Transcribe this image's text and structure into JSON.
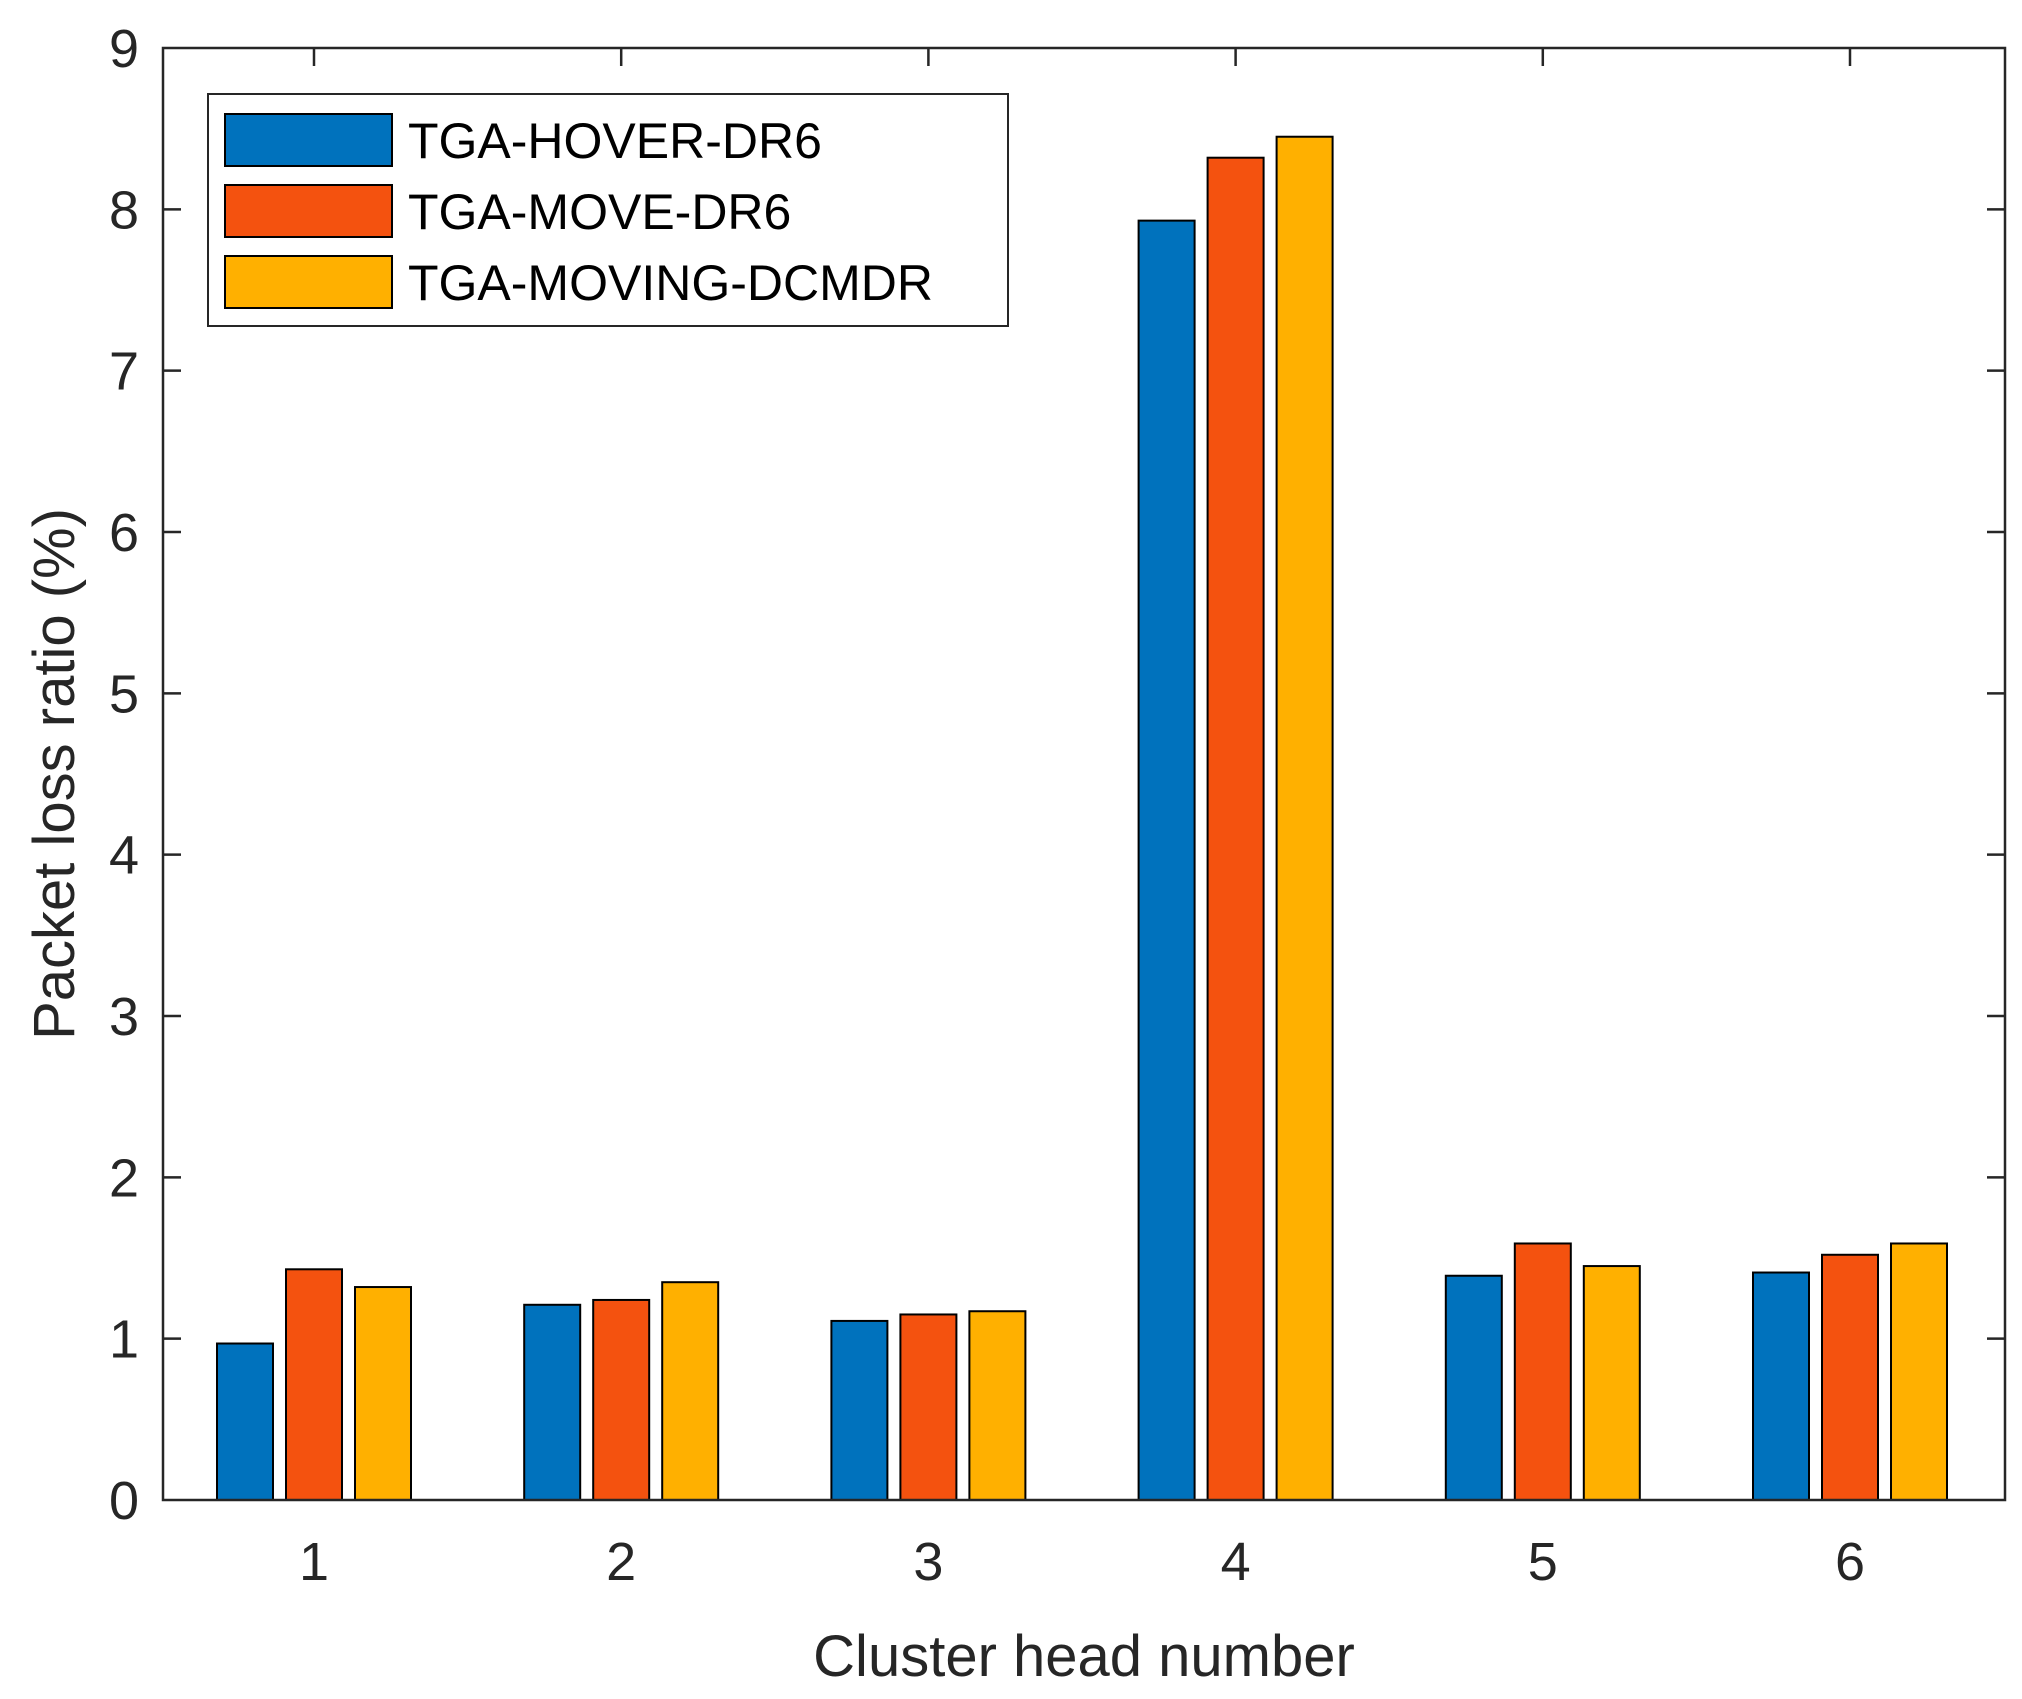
{
  "chart_data": {
    "type": "bar",
    "title": "",
    "xlabel": "Cluster head number",
    "ylabel": "Packet loss ratio (%)",
    "categories": [
      "1",
      "2",
      "3",
      "4",
      "5",
      "6"
    ],
    "series": [
      {
        "name": "TGA-HOVER-DR6",
        "color": "#0072BD",
        "values": [
          0.97,
          1.21,
          1.11,
          7.93,
          1.39,
          1.41
        ]
      },
      {
        "name": "TGA-MOVE-DR6",
        "color": "#F4520F",
        "values": [
          1.43,
          1.24,
          1.15,
          8.32,
          1.59,
          1.52
        ]
      },
      {
        "name": "TGA-MOVING-DCMDR",
        "color": "#FFB000",
        "values": [
          1.32,
          1.35,
          1.17,
          8.45,
          1.45,
          1.59
        ]
      }
    ],
    "ylim": [
      0,
      9
    ],
    "yticks": [
      "0",
      "1",
      "2",
      "3",
      "4",
      "5",
      "6",
      "7",
      "8",
      "9"
    ],
    "legend_position": "top-left",
    "grid": false
  }
}
